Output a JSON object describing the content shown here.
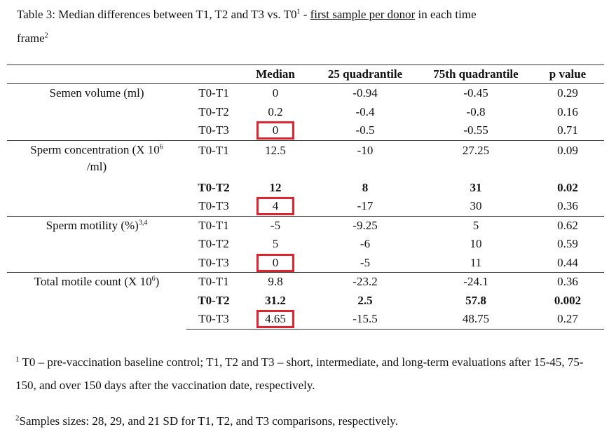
{
  "caption": {
    "prefix": "Table 3: Median differences between T1, T2 and T3 vs. T0",
    "sup": "1",
    "dash": " - ",
    "underlined": "first sample per donor",
    "suffix": " in each time",
    "line2": "frame",
    "line2_sup": "2"
  },
  "headers": [
    "",
    "",
    "Median",
    "25 quadrantile",
    "75th quadrantile",
    "p value"
  ],
  "groups": [
    {
      "label": "Semen volume (ml)",
      "label_sup": "",
      "label_cont": "",
      "rows": [
        {
          "cmp": "T0-T1",
          "median": "0",
          "q25": "-0.94",
          "q75": "-0.45",
          "p": "0.29",
          "bold": false,
          "highlight": false
        },
        {
          "cmp": "T0-T2",
          "median": "0.2",
          "q25": "-0.4",
          "q75": "-0.8",
          "p": "0.16",
          "bold": false,
          "highlight": false
        },
        {
          "cmp": "T0-T3",
          "median": "0",
          "q25": "-0.5",
          "q75": "-0.55",
          "p": "0.71",
          "bold": false,
          "highlight": true
        }
      ]
    },
    {
      "label": "Sperm concentration (X 10",
      "label_sup": "6",
      "label_cont": " /ml)",
      "rows": [
        {
          "cmp": "T0-T1",
          "median": "12.5",
          "q25": "-10",
          "q75": "27.25",
          "p": "0.09",
          "bold": false,
          "highlight": false
        },
        {
          "cmp": "T0-T2",
          "median": "12",
          "q25": "8",
          "q75": "31",
          "p": "0.02",
          "bold": true,
          "highlight": false
        },
        {
          "cmp": "T0-T3",
          "median": "4",
          "q25": "-17",
          "q75": "30",
          "p": "0.36",
          "bold": false,
          "highlight": true
        }
      ]
    },
    {
      "label": "Sperm motility (%)",
      "label_sup": "3,4",
      "label_cont": "",
      "rows": [
        {
          "cmp": "T0-T1",
          "median": "-5",
          "q25": "-9.25",
          "q75": "5",
          "p": "0.62",
          "bold": false,
          "highlight": false
        },
        {
          "cmp": "T0-T2",
          "median": "5",
          "q25": "-6",
          "q75": "10",
          "p": "0.59",
          "bold": false,
          "highlight": false
        },
        {
          "cmp": "T0-T3",
          "median": "0",
          "q25": "-5",
          "q75": "11",
          "p": "0.44",
          "bold": false,
          "highlight": true
        }
      ]
    },
    {
      "label": "Total motile count  (X 10",
      "label_sup": "6",
      "label_cont": ")",
      "rows": [
        {
          "cmp": "T0-T1",
          "median": "9.8",
          "q25": "-23.2",
          "q75": "-24.1",
          "p": "0.36",
          "bold": false,
          "highlight": false
        },
        {
          "cmp": "T0-T2",
          "median": "31.2",
          "q25": "2.5",
          "q75": "57.8",
          "p": "0.002",
          "bold": true,
          "highlight": false
        },
        {
          "cmp": "T0-T3",
          "median": "4.65",
          "q25": "-15.5",
          "q75": "48.75",
          "p": "0.27",
          "bold": false,
          "highlight": true
        }
      ]
    }
  ],
  "footnotes": [
    {
      "sup": "1",
      "text": " T0 – pre-vaccination baseline control; T1, T2 and T3 – short, intermediate, and long-term evaluations after 15-45, 75-150, and over 150 days after the vaccination date, respectively."
    },
    {
      "sup": "2",
      "text": "Samples sizes: 28, 29, and 21 SD for T1, T2, and T3 comparisons, respectively."
    }
  ],
  "colors": {
    "highlight_border": "#e0242d",
    "rule": "#333333"
  }
}
